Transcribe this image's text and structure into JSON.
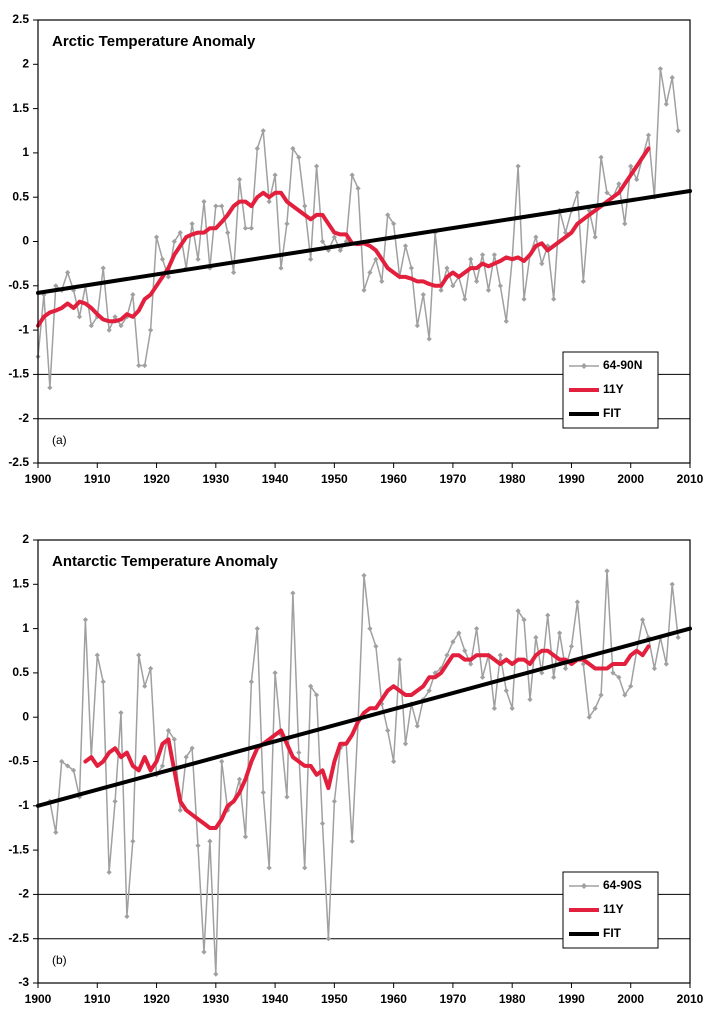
{
  "chart_data": [
    {
      "type": "line",
      "title": "Arctic Temperature Anomaly",
      "panel_label": "(a)",
      "xlim": [
        1900,
        2010
      ],
      "xticks": [
        1900,
        1910,
        1920,
        1930,
        1940,
        1950,
        1960,
        1970,
        1980,
        1990,
        2000,
        2010
      ],
      "ylim": [
        -2.5,
        2.5
      ],
      "yticks": [
        2.5,
        2,
        1.5,
        1,
        0.5,
        0,
        -0.5,
        -1,
        -1.5,
        -2,
        -2.5
      ],
      "hlines": [
        -1.5,
        -2
      ],
      "legend": "lower right",
      "series": [
        {
          "name": "64-90N",
          "color": "#a0a0a0",
          "marker": true,
          "x": [
            1900,
            1901,
            1902,
            1903,
            1904,
            1905,
            1906,
            1907,
            1908,
            1909,
            1910,
            1911,
            1912,
            1913,
            1914,
            1915,
            1916,
            1917,
            1918,
            1919,
            1920,
            1921,
            1922,
            1923,
            1924,
            1925,
            1926,
            1927,
            1928,
            1929,
            1930,
            1931,
            1932,
            1933,
            1934,
            1935,
            1936,
            1937,
            1938,
            1939,
            1940,
            1941,
            1942,
            1943,
            1944,
            1945,
            1946,
            1947,
            1948,
            1949,
            1950,
            1951,
            1952,
            1953,
            1954,
            1955,
            1956,
            1957,
            1958,
            1959,
            1960,
            1961,
            1962,
            1963,
            1964,
            1965,
            1966,
            1967,
            1968,
            1969,
            1970,
            1971,
            1972,
            1973,
            1974,
            1975,
            1976,
            1977,
            1978,
            1979,
            1980,
            1981,
            1982,
            1983,
            1984,
            1985,
            1986,
            1987,
            1988,
            1989,
            1990,
            1991,
            1992,
            1993,
            1994,
            1995,
            1996,
            1997,
            1998,
            1999,
            2000,
            2001,
            2002,
            2003,
            2004,
            2005,
            2006,
            2007,
            2008
          ],
          "values": [
            -1.3,
            -0.6,
            -1.65,
            -0.5,
            -0.55,
            -0.35,
            -0.55,
            -0.85,
            -0.5,
            -0.95,
            -0.85,
            -0.3,
            -1.0,
            -0.85,
            -0.95,
            -0.85,
            -0.6,
            -1.4,
            -1.4,
            -1.0,
            0.05,
            -0.2,
            -0.4,
            0.0,
            0.1,
            -0.3,
            0.2,
            -0.2,
            0.45,
            -0.3,
            0.4,
            0.4,
            0.1,
            -0.35,
            0.7,
            0.15,
            0.15,
            1.05,
            1.25,
            0.45,
            0.75,
            -0.3,
            0.2,
            1.05,
            0.95,
            0.4,
            -0.2,
            0.85,
            0.0,
            -0.1,
            0.05,
            -0.1,
            0.0,
            0.75,
            0.6,
            -0.55,
            -0.35,
            -0.2,
            -0.45,
            0.3,
            0.2,
            -0.4,
            -0.05,
            -0.3,
            -0.95,
            -0.6,
            -1.1,
            0.1,
            -0.55,
            -0.3,
            -0.5,
            -0.4,
            -0.65,
            -0.2,
            -0.45,
            -0.15,
            -0.55,
            -0.15,
            -0.5,
            -0.9,
            -0.2,
            0.85,
            -0.65,
            -0.15,
            0.05,
            -0.25,
            -0.05,
            -0.65,
            0.35,
            0.1,
            0.35,
            0.55,
            -0.45,
            0.35,
            0.05,
            0.95,
            0.55,
            0.5,
            0.65,
            0.2,
            0.85,
            0.7,
            0.95,
            1.2,
            0.5,
            1.95,
            1.55,
            1.85,
            1.25
          ]
        },
        {
          "name": "11Y",
          "color": "#e21f3c",
          "width": 4,
          "x": [
            1900,
            1901,
            1902,
            1903,
            1904,
            1905,
            1906,
            1907,
            1908,
            1909,
            1910,
            1911,
            1912,
            1913,
            1914,
            1915,
            1916,
            1917,
            1918,
            1919,
            1920,
            1921,
            1922,
            1923,
            1924,
            1925,
            1926,
            1927,
            1928,
            1929,
            1930,
            1931,
            1932,
            1933,
            1934,
            1935,
            1936,
            1937,
            1938,
            1939,
            1940,
            1941,
            1942,
            1943,
            1944,
            1945,
            1946,
            1947,
            1948,
            1949,
            1950,
            1951,
            1952,
            1953,
            1954,
            1955,
            1956,
            1957,
            1958,
            1959,
            1960,
            1961,
            1962,
            1963,
            1964,
            1965,
            1966,
            1967,
            1968,
            1969,
            1970,
            1971,
            1972,
            1973,
            1974,
            1975,
            1976,
            1977,
            1978,
            1979,
            1980,
            1981,
            1982,
            1983,
            1984,
            1985,
            1986,
            1987,
            1988,
            1989,
            1990,
            1991,
            1992,
            1993,
            1994,
            1995,
            1996,
            1997,
            1998,
            1999,
            2000,
            2001,
            2002,
            2003
          ],
          "values": [
            -0.95,
            -0.85,
            -0.8,
            -0.78,
            -0.75,
            -0.7,
            -0.75,
            -0.68,
            -0.7,
            -0.75,
            -0.82,
            -0.88,
            -0.9,
            -0.9,
            -0.88,
            -0.82,
            -0.85,
            -0.78,
            -0.65,
            -0.6,
            -0.5,
            -0.4,
            -0.3,
            -0.15,
            -0.05,
            0.05,
            0.08,
            0.1,
            0.1,
            0.15,
            0.15,
            0.22,
            0.3,
            0.4,
            0.45,
            0.45,
            0.4,
            0.5,
            0.55,
            0.5,
            0.55,
            0.55,
            0.45,
            0.4,
            0.35,
            0.3,
            0.25,
            0.3,
            0.3,
            0.2,
            0.1,
            0.08,
            0.08,
            -0.02,
            -0.03,
            -0.02,
            -0.05,
            -0.1,
            -0.2,
            -0.3,
            -0.35,
            -0.4,
            -0.4,
            -0.42,
            -0.45,
            -0.45,
            -0.48,
            -0.5,
            -0.5,
            -0.4,
            -0.35,
            -0.4,
            -0.35,
            -0.3,
            -0.3,
            -0.25,
            -0.28,
            -0.25,
            -0.22,
            -0.18,
            -0.2,
            -0.18,
            -0.22,
            -0.15,
            -0.05,
            -0.02,
            -0.1,
            -0.05,
            0.0,
            0.05,
            0.1,
            0.2,
            0.25,
            0.3,
            0.35,
            0.4,
            0.45,
            0.5,
            0.55,
            0.65,
            0.75,
            0.85,
            0.95,
            1.05
          ]
        },
        {
          "name": "FIT",
          "color": "#000000",
          "width": 4,
          "x": [
            1900,
            2010
          ],
          "values": [
            -0.58,
            0.57
          ]
        }
      ]
    },
    {
      "type": "line",
      "title": "Antarctic Temperature Anomaly",
      "panel_label": "(b)",
      "xlim": [
        1900,
        2010
      ],
      "xticks": [
        1900,
        1910,
        1920,
        1930,
        1940,
        1950,
        1960,
        1970,
        1980,
        1990,
        2000,
        2010
      ],
      "ylim": [
        -3,
        2
      ],
      "yticks": [
        2,
        1.5,
        1,
        0.5,
        0,
        -0.5,
        -1,
        -1.5,
        -2,
        -2.5,
        -3
      ],
      "hlines": [
        -2,
        -2.5
      ],
      "legend": "lower right",
      "series": [
        {
          "name": "64-90S",
          "color": "#a0a0a0",
          "marker": true,
          "x": [
            1902,
            1903,
            1904,
            1905,
            1906,
            1907,
            1908,
            1909,
            1910,
            1911,
            1912,
            1913,
            1914,
            1915,
            1916,
            1917,
            1918,
            1919,
            1920,
            1921,
            1922,
            1923,
            1924,
            1925,
            1926,
            1927,
            1928,
            1929,
            1930,
            1931,
            1932,
            1933,
            1934,
            1935,
            1936,
            1937,
            1938,
            1939,
            1940,
            1941,
            1942,
            1943,
            1944,
            1945,
            1946,
            1947,
            1948,
            1949,
            1950,
            1951,
            1952,
            1953,
            1954,
            1955,
            1956,
            1957,
            1958,
            1959,
            1960,
            1961,
            1962,
            1963,
            1964,
            1965,
            1966,
            1967,
            1968,
            1969,
            1970,
            1971,
            1972,
            1973,
            1974,
            1975,
            1976,
            1977,
            1978,
            1979,
            1980,
            1981,
            1982,
            1983,
            1984,
            1985,
            1986,
            1987,
            1988,
            1989,
            1990,
            1991,
            1992,
            1993,
            1994,
            1995,
            1996,
            1997,
            1998,
            1999,
            2000,
            2001,
            2002,
            2003,
            2004,
            2005,
            2006,
            2007,
            2008
          ],
          "values": [
            -0.95,
            -1.3,
            -0.5,
            -0.55,
            -0.6,
            -0.9,
            1.1,
            -0.45,
            0.7,
            0.4,
            -1.75,
            -0.95,
            0.05,
            -2.25,
            -1.4,
            0.7,
            0.35,
            0.55,
            -0.65,
            -0.55,
            -0.15,
            -0.25,
            -1.05,
            -0.45,
            -0.35,
            -1.45,
            -2.65,
            -1.4,
            -2.9,
            -0.5,
            -1.05,
            -0.95,
            -0.7,
            -1.35,
            0.4,
            1.0,
            -0.85,
            -1.7,
            0.5,
            -0.2,
            -0.9,
            1.4,
            -0.4,
            -1.7,
            0.35,
            0.25,
            -1.2,
            -2.5,
            -0.95,
            -0.35,
            -0.3,
            -1.4,
            -0.05,
            1.6,
            1.0,
            0.8,
            0.15,
            -0.15,
            -0.5,
            0.65,
            -0.3,
            0.15,
            -0.1,
            0.2,
            0.3,
            0.5,
            0.55,
            0.7,
            0.85,
            0.95,
            0.75,
            0.6,
            1.0,
            0.45,
            0.7,
            0.1,
            0.7,
            0.3,
            0.1,
            1.2,
            1.1,
            0.2,
            0.9,
            0.5,
            1.15,
            0.45,
            0.95,
            0.55,
            0.8,
            1.3,
            0.6,
            0.0,
            0.1,
            0.25,
            1.65,
            0.5,
            0.45,
            0.25,
            0.35,
            0.75,
            1.1,
            0.9,
            0.55,
            0.9,
            0.6,
            1.5,
            0.9
          ]
        },
        {
          "name": "11Y",
          "color": "#e21f3c",
          "width": 4,
          "x": [
            1908,
            1909,
            1910,
            1911,
            1912,
            1913,
            1914,
            1915,
            1916,
            1917,
            1918,
            1919,
            1920,
            1921,
            1922,
            1923,
            1924,
            1925,
            1926,
            1927,
            1928,
            1929,
            1930,
            1931,
            1932,
            1933,
            1934,
            1935,
            1936,
            1937,
            1938,
            1939,
            1940,
            1941,
            1942,
            1943,
            1944,
            1945,
            1946,
            1947,
            1948,
            1949,
            1950,
            1951,
            1952,
            1953,
            1954,
            1955,
            1956,
            1957,
            1958,
            1959,
            1960,
            1961,
            1962,
            1963,
            1964,
            1965,
            1966,
            1967,
            1968,
            1969,
            1970,
            1971,
            1972,
            1973,
            1974,
            1975,
            1976,
            1977,
            1978,
            1979,
            1980,
            1981,
            1982,
            1983,
            1984,
            1985,
            1986,
            1987,
            1988,
            1989,
            1990,
            1991,
            1992,
            1993,
            1994,
            1995,
            1996,
            1997,
            1998,
            1999,
            2000,
            2001,
            2002,
            2003
          ],
          "values": [
            -0.5,
            -0.45,
            -0.55,
            -0.5,
            -0.4,
            -0.35,
            -0.45,
            -0.4,
            -0.55,
            -0.6,
            -0.45,
            -0.6,
            -0.5,
            -0.3,
            -0.25,
            -0.6,
            -0.95,
            -1.05,
            -1.1,
            -1.15,
            -1.2,
            -1.25,
            -1.25,
            -1.15,
            -1.0,
            -0.95,
            -0.85,
            -0.7,
            -0.5,
            -0.35,
            -0.3,
            -0.25,
            -0.2,
            -0.15,
            -0.3,
            -0.45,
            -0.5,
            -0.55,
            -0.55,
            -0.65,
            -0.6,
            -0.8,
            -0.5,
            -0.3,
            -0.3,
            -0.2,
            -0.05,
            0.05,
            0.1,
            0.1,
            0.2,
            0.3,
            0.35,
            0.3,
            0.25,
            0.25,
            0.3,
            0.35,
            0.45,
            0.45,
            0.5,
            0.6,
            0.7,
            0.7,
            0.65,
            0.65,
            0.7,
            0.7,
            0.7,
            0.65,
            0.6,
            0.65,
            0.6,
            0.65,
            0.65,
            0.6,
            0.7,
            0.75,
            0.75,
            0.7,
            0.65,
            0.65,
            0.6,
            0.65,
            0.65,
            0.6,
            0.55,
            0.55,
            0.55,
            0.6,
            0.6,
            0.6,
            0.7,
            0.75,
            0.7,
            0.8
          ]
        },
        {
          "name": "FIT",
          "color": "#000000",
          "width": 4,
          "x": [
            1900,
            2010
          ],
          "values": [
            -1.0,
            1.0
          ]
        }
      ]
    }
  ]
}
